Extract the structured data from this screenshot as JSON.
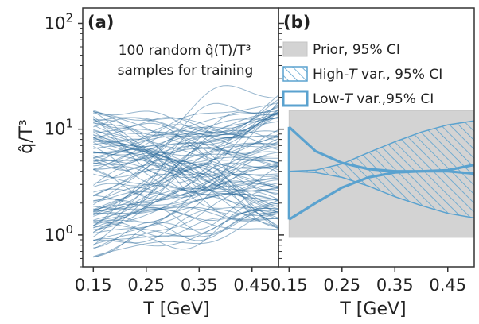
{
  "chart_data": [
    {
      "panel": "a",
      "type": "line",
      "panel_label": "(a)",
      "annotation_line1": "100 random q̂(T)/T³",
      "annotation_line2": "samples for training",
      "xlabel": "T [GeV]",
      "ylabel": "q̂/T³",
      "xlim": [
        0.13,
        0.5
      ],
      "ylim": [
        0.5,
        140
      ],
      "yscale": "log",
      "xticks": [
        0.15,
        0.25,
        0.35,
        0.45
      ],
      "xtick_labels": [
        "0.15",
        "0.25",
        "0.35",
        "0.45"
      ],
      "yticks": [
        1,
        10,
        100
      ],
      "line_color": "#2f6d9e",
      "sample_count": 100,
      "sample_range_at_T_0_15": [
        0.6,
        16
      ],
      "sample_range_at_T_0_50": [
        1.1,
        22
      ]
    },
    {
      "panel": "b",
      "type": "area",
      "panel_label": "(b)",
      "xlabel": "T [GeV]",
      "xlim": [
        0.13,
        0.5
      ],
      "ylim": [
        0.5,
        140
      ],
      "yscale": "log",
      "xticks": [
        0.15,
        0.25,
        0.35,
        0.45
      ],
      "xtick_labels": [
        "0.15",
        "0.25",
        "0.35",
        "0.45"
      ],
      "x": [
        0.15,
        0.2,
        0.25,
        0.3,
        0.35,
        0.4,
        0.45,
        0.5
      ],
      "series": [
        {
          "name": "Prior, 95% CI",
          "style": "filled",
          "color": "#d3d3d3",
          "lower": [
            0.95,
            0.95,
            0.95,
            0.95,
            0.95,
            0.95,
            0.95,
            0.95
          ],
          "upper": [
            15,
            15,
            15,
            15,
            15,
            15,
            15,
            15
          ]
        },
        {
          "name": "High-T var., 95% CI",
          "style": "hatched",
          "color": "#5aa2cf",
          "lower": [
            4.0,
            3.9,
            3.5,
            2.9,
            2.3,
            1.9,
            1.6,
            1.45
          ],
          "upper": [
            4.0,
            4.1,
            4.7,
            6.0,
            7.6,
            9.4,
            11.0,
            12.0
          ]
        },
        {
          "name": "Low-T var.,95% CI",
          "style": "outline",
          "color": "#5aa2cf",
          "lower": [
            1.4,
            2.0,
            2.8,
            3.5,
            3.9,
            4.0,
            4.0,
            3.8
          ],
          "upper": [
            10.5,
            6.2,
            4.8,
            4.2,
            4.0,
            4.0,
            4.1,
            4.6
          ]
        }
      ],
      "legend_labels": [
        "Prior, 95% CI",
        "High-",
        "T",
        " var., 95% CI",
        "Low-",
        "T",
        " var.,95% CI"
      ]
    }
  ]
}
